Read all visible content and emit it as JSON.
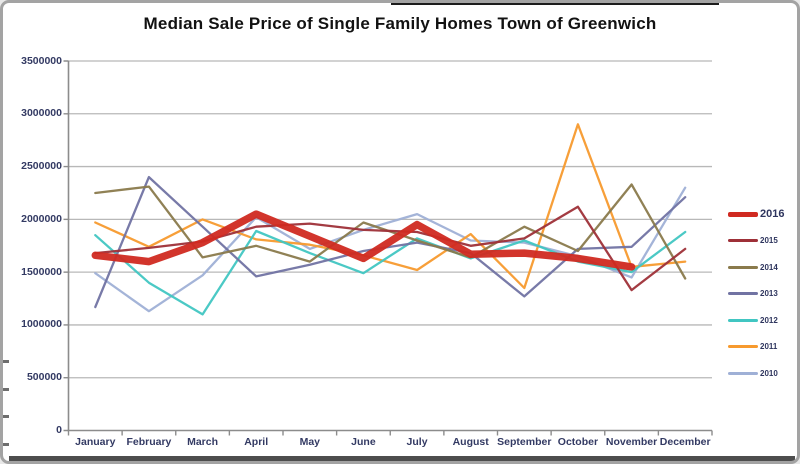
{
  "chart_data": {
    "type": "line",
    "title": "Median Sale Price of Single Family Homes Town of Greenwich",
    "xlabel": "",
    "ylabel": "",
    "categories": [
      "January",
      "February",
      "March",
      "April",
      "May",
      "June",
      "July",
      "August",
      "September",
      "October",
      "November",
      "December"
    ],
    "ylim": [
      0,
      3500000
    ],
    "y_ticks": [
      0,
      500000,
      1000000,
      1500000,
      2000000,
      2500000,
      3000000,
      3500000
    ],
    "grid": "horizontal",
    "legend_position": "right",
    "series": [
      {
        "name": "2016",
        "color": "#d02a21",
        "emphasis": "thick",
        "values": [
          1660000,
          1600000,
          1780000,
          2050000,
          1840000,
          1630000,
          1950000,
          1670000,
          1680000,
          1630000,
          1550000,
          null
        ]
      },
      {
        "name": "2015",
        "color": "#9e3038",
        "emphasis": "normal",
        "values": [
          1680000,
          1730000,
          1790000,
          1930000,
          1960000,
          1900000,
          1880000,
          1750000,
          1820000,
          2120000,
          1330000,
          1720000
        ]
      },
      {
        "name": "2014",
        "color": "#8a7a4c",
        "emphasis": "normal",
        "values": [
          2250000,
          2310000,
          1640000,
          1750000,
          1600000,
          1970000,
          1800000,
          1640000,
          1930000,
          1700000,
          2330000,
          1440000
        ]
      },
      {
        "name": "2013",
        "color": "#7173a3",
        "emphasis": "normal",
        "values": [
          1170000,
          2400000,
          1930000,
          1460000,
          1570000,
          1700000,
          1780000,
          1680000,
          1270000,
          1720000,
          1740000,
          2210000
        ]
      },
      {
        "name": "2012",
        "color": "#41c6c2",
        "emphasis": "normal",
        "values": [
          1850000,
          1400000,
          1100000,
          1890000,
          1680000,
          1490000,
          1820000,
          1630000,
          1800000,
          1600000,
          1500000,
          1880000
        ]
      },
      {
        "name": "2011",
        "color": "#f79a2e",
        "emphasis": "normal",
        "values": [
          1970000,
          1740000,
          2000000,
          1810000,
          1760000,
          1660000,
          1520000,
          1860000,
          1350000,
          2900000,
          1550000,
          1600000
        ]
      },
      {
        "name": "2010",
        "color": "#9fb0d6",
        "emphasis": "normal",
        "values": [
          1490000,
          1130000,
          1470000,
          2020000,
          1720000,
          1900000,
          2050000,
          1800000,
          1780000,
          1650000,
          1450000,
          2300000
        ]
      }
    ],
    "axis_colors": {
      "grid": "#b8b8b8",
      "axis": "#8c8c8c",
      "tick_label": "#333a63"
    }
  }
}
